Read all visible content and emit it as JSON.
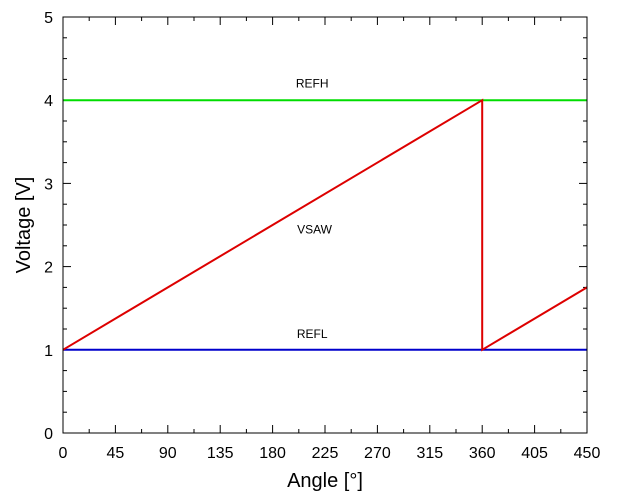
{
  "chart_data": {
    "type": "line",
    "xlabel": "Angle [°]",
    "ylabel": "Voltage [V]",
    "xlim": [
      0,
      450
    ],
    "ylim": [
      0,
      5
    ],
    "xticks": [
      "0",
      "45",
      "90",
      "135",
      "180",
      "225",
      "270",
      "315",
      "360",
      "405",
      "450"
    ],
    "yticks": [
      "0",
      "1",
      "2",
      "3",
      "4",
      "5"
    ],
    "grid": false,
    "legend": "none",
    "series": [
      {
        "name": "REFH",
        "color": "#00dd00",
        "x": [
          0,
          450
        ],
        "y": [
          4,
          4
        ]
      },
      {
        "name": "REFL",
        "color": "#0000cc",
        "x": [
          0,
          450
        ],
        "y": [
          1,
          1
        ]
      },
      {
        "name": "VSAW",
        "color": "#dd0000",
        "x": [
          0,
          360,
          360,
          450
        ],
        "y": [
          1,
          4,
          1,
          1.75
        ]
      }
    ],
    "annotations": [
      {
        "text": "REFH",
        "x": 214,
        "y": 4.15
      },
      {
        "text": "VSAW",
        "x": 216,
        "y": 2.4
      },
      {
        "text": "REFL",
        "x": 214,
        "y": 1.14
      }
    ]
  }
}
